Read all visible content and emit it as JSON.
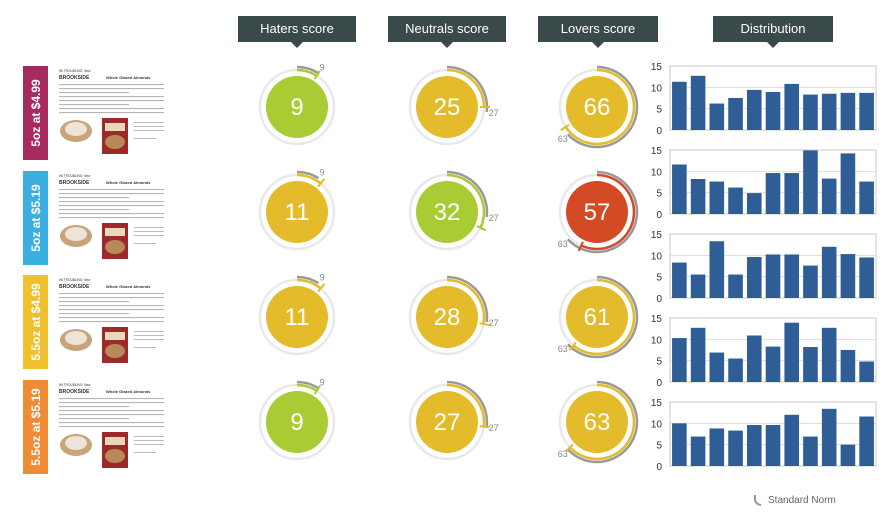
{
  "headers": {
    "haters": "Haters score",
    "neutrals": "Neutrals score",
    "lovers": "Lovers score",
    "distribution": "Distribution"
  },
  "rows": [
    {
      "label": "5oz at $4.99",
      "color": "#a62a5c"
    },
    {
      "label": "5oz at $5.19",
      "color": "#3bb0e0"
    },
    {
      "label": "5.5oz at $4.99",
      "color": "#efc12e"
    },
    {
      "label": "5.5oz at $5.19",
      "color": "#ef8a35"
    }
  ],
  "thumbnail": {
    "product_name": "Whole Glazed Almonds",
    "header": "WI TROUBLING: New",
    "brand": "BROOKSIDE"
  },
  "legend": {
    "label": "Standard Norm"
  },
  "colors": {
    "green": "#a9cc35",
    "yellow": "#e3bb2b",
    "red": "#d44a25",
    "bar": "#2e5e95",
    "norm": "#999999"
  },
  "chart_data": [
    {
      "type": "gauge-grid",
      "columns": [
        "Haters score",
        "Neutrals score",
        "Lovers score"
      ],
      "rows": [
        "5oz at $4.99",
        "5oz at $5.19",
        "5.5oz at $4.99",
        "5.5oz at $5.19"
      ],
      "scores": [
        [
          9,
          25,
          66
        ],
        [
          11,
          32,
          57
        ],
        [
          11,
          28,
          61
        ],
        [
          9,
          27,
          63
        ]
      ],
      "fill_colors": [
        [
          "green",
          "yellow",
          "yellow"
        ],
        [
          "yellow",
          "green",
          "red"
        ],
        [
          "yellow",
          "yellow",
          "yellow"
        ],
        [
          "green",
          "yellow",
          "yellow"
        ]
      ],
      "norms": [
        9,
        27,
        63
      ],
      "scale_max": 100
    },
    {
      "type": "bar",
      "title": "Distribution",
      "ylim": [
        0,
        15
      ],
      "yticks": [
        0,
        5,
        10,
        15
      ],
      "series": [
        {
          "name": "5oz at $4.99",
          "values": [
            11.3,
            12.7,
            6.2,
            7.5,
            9.4,
            8.9,
            10.8,
            8.3,
            8.5,
            8.7,
            8.7
          ]
        },
        {
          "name": "5oz at $5.19",
          "values": [
            11.6,
            8.2,
            7.6,
            6.2,
            4.9,
            9.6,
            9.6,
            14.9,
            8.3,
            14.2,
            7.6
          ]
        },
        {
          "name": "5.5oz at $4.99",
          "values": [
            8.3,
            5.5,
            13.3,
            5.5,
            9.6,
            10.2,
            10.2,
            7.6,
            12.0,
            10.3,
            9.5
          ]
        },
        {
          "name": "5.5oz at $5.19",
          "values": [
            10.3,
            12.7,
            6.9,
            5.5,
            10.9,
            8.3,
            13.9,
            8.2,
            12.7,
            7.5,
            4.8
          ]
        },
        {
          "name": "5.5oz at $5.19",
          "values": [
            10.0,
            6.9,
            8.8,
            8.3,
            9.6,
            9.6,
            12.0,
            6.9,
            13.4,
            5.0,
            11.6
          ]
        }
      ]
    }
  ]
}
